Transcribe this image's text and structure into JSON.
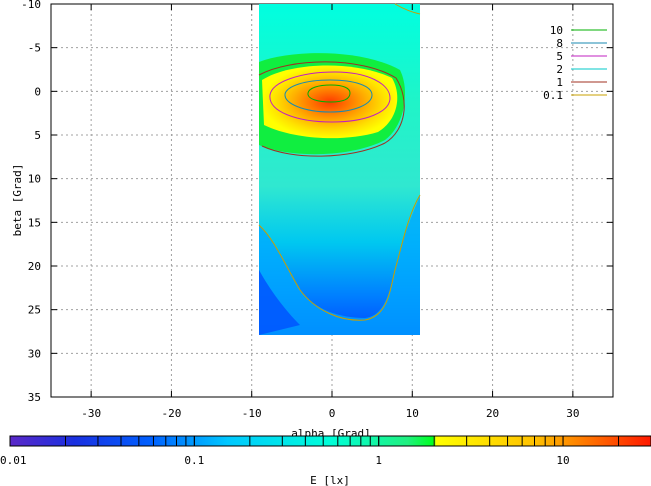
{
  "chart_data": {
    "type": "heatmap",
    "title": "",
    "xlabel": "alpha [Grad]",
    "ylabel": "beta [Grad]",
    "xlim": [
      -35,
      35
    ],
    "ylim": [
      35,
      -10
    ],
    "y_inverted": true,
    "grid": true,
    "x_ticks": [
      -30,
      -20,
      -10,
      0,
      10,
      20,
      30
    ],
    "x_tick_labels": [
      "-30",
      "-20",
      "-10",
      "0",
      "10",
      "20",
      "30"
    ],
    "y_ticks": [
      -10,
      -5,
      0,
      5,
      10,
      15,
      20,
      25,
      30,
      35
    ],
    "y_tick_labels": [
      "-10",
      "-5",
      "0",
      "5",
      "10",
      "15",
      "20",
      "25",
      "30",
      "35"
    ],
    "data_region": {
      "alpha": [
        -9,
        11
      ],
      "beta": [
        -10,
        28
      ]
    },
    "colorbar": {
      "label": "E [lx]",
      "scale": "log",
      "range": [
        0.01,
        30
      ],
      "ticks": [
        0.01,
        0.1,
        1,
        10
      ],
      "tick_labels": [
        "0.01",
        "0.1",
        "1",
        "10"
      ],
      "colors": [
        "#5a28c8",
        "#0050ff",
        "#00b4ff",
        "#00ffe8",
        "#10f070",
        "#00ff20",
        "#ffff00",
        "#ff9000",
        "#ff2000"
      ]
    },
    "contours": [
      {
        "level": "10",
        "color": "#00b000"
      },
      {
        "level": "8",
        "color": "#1a8ab0"
      },
      {
        "level": "5",
        "color": "#c020c0"
      },
      {
        "level": "2",
        "color": "#00c8c8"
      },
      {
        "level": "1",
        "color": "#a03020"
      },
      {
        "level": "0.1",
        "color": "#c8a000"
      }
    ],
    "legend_position": "top-right"
  }
}
